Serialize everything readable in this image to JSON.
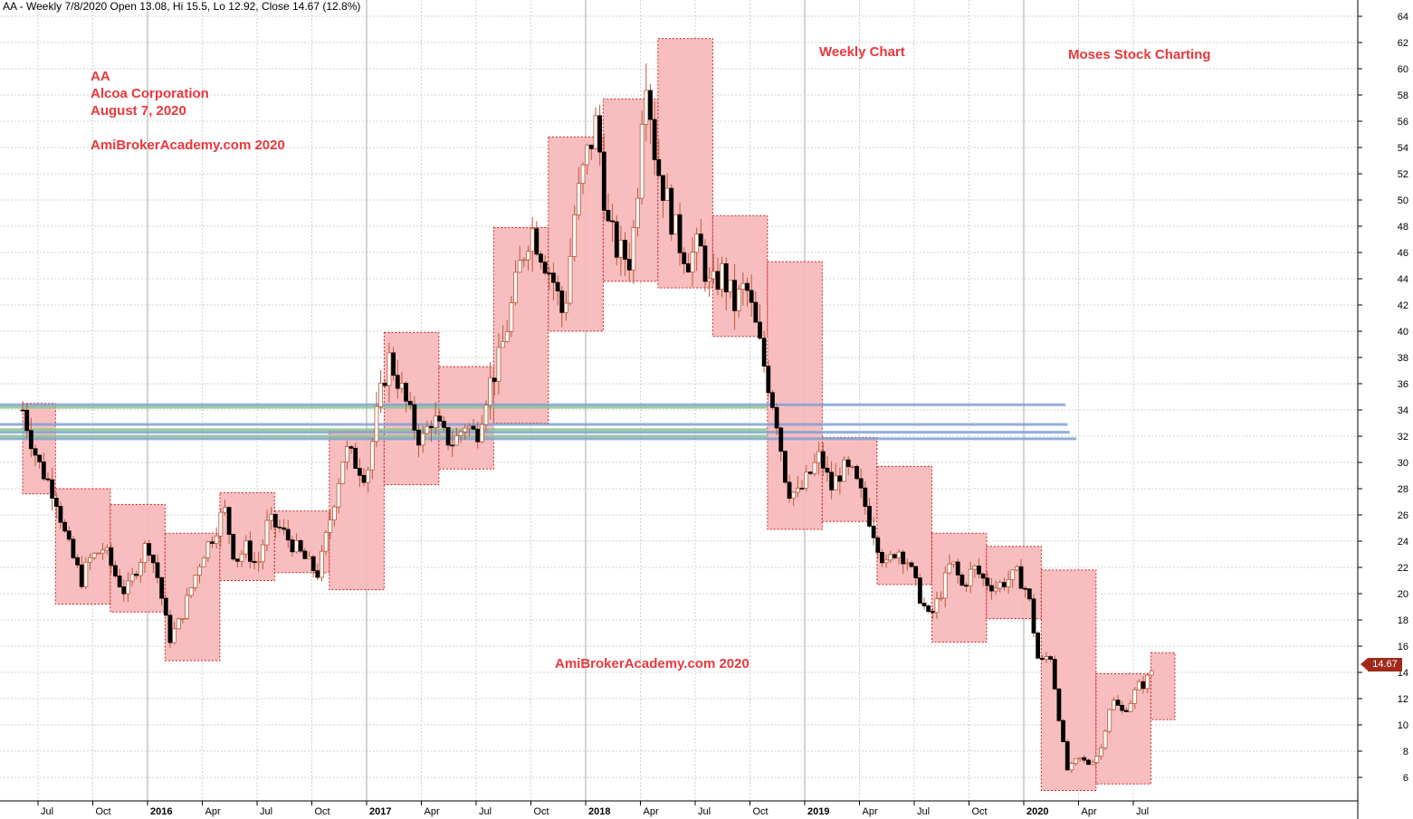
{
  "header": {
    "title": "AA - Weekly 7/8/2020 Open 13.08, Hi 15.5, Lo 12.92, Close 14.67 (12.8%)"
  },
  "annotations": {
    "ticker": "AA",
    "company": "Alcoa Corporation",
    "date": "August 7, 2020",
    "site_top": "AmiBrokerAcademy.com  2020",
    "weekly_chart": "Weekly Chart",
    "moses": "Moses Stock Charting",
    "site_bottom": "AmiBrokerAcademy.com  2020"
  },
  "last_price_label": "14.67",
  "colors": {
    "background": "#ffffff",
    "grid": "#d0d0d0",
    "box_fill": "#f7b7b8",
    "box_border": "#cc2222",
    "bull_candle": "#ffffff",
    "bear_candle": "#000000",
    "wick": "#b85a3c",
    "resistance_blue": "#7fa0d6",
    "resistance_green": "#8cc48c",
    "annotation_red": "#e8383d",
    "price_tag": "#a02a1a"
  },
  "chart_data": {
    "type": "candlestick",
    "title": "AA - Weekly 7/8/2020 Open 13.08, Hi 15.5, Lo 12.92, Close 14.67 (12.8%)",
    "x_start": "2015-06",
    "x_end": "2020-08",
    "ylim": [
      4.5,
      65.5
    ],
    "y_ticks": [
      6,
      8,
      10,
      12,
      14,
      16,
      18,
      20,
      22,
      24,
      26,
      28,
      30,
      32,
      34,
      36,
      38,
      40,
      42,
      44,
      46,
      48,
      50,
      52,
      54,
      56,
      58,
      60,
      62,
      64
    ],
    "x_ticks": [
      {
        "label": "Jul",
        "t": 2015.5,
        "bold": false
      },
      {
        "label": "Oct",
        "t": 2015.75,
        "bold": false
      },
      {
        "label": "2016",
        "t": 2016.0,
        "bold": true
      },
      {
        "label": "Apr",
        "t": 2016.25,
        "bold": false
      },
      {
        "label": "Jul",
        "t": 2016.5,
        "bold": false
      },
      {
        "label": "Oct",
        "t": 2016.75,
        "bold": false
      },
      {
        "label": "2017",
        "t": 2017.0,
        "bold": true
      },
      {
        "label": "Apr",
        "t": 2017.25,
        "bold": false
      },
      {
        "label": "Jul",
        "t": 2017.5,
        "bold": false
      },
      {
        "label": "Oct",
        "t": 2017.75,
        "bold": false
      },
      {
        "label": "2018",
        "t": 2018.0,
        "bold": true
      },
      {
        "label": "Apr",
        "t": 2018.25,
        "bold": false
      },
      {
        "label": "Jul",
        "t": 2018.5,
        "bold": false
      },
      {
        "label": "Oct",
        "t": 2018.75,
        "bold": false
      },
      {
        "label": "2019",
        "t": 2019.0,
        "bold": true
      },
      {
        "label": "Apr",
        "t": 2019.25,
        "bold": false
      },
      {
        "label": "Jul",
        "t": 2019.5,
        "bold": false
      },
      {
        "label": "Oct",
        "t": 2019.75,
        "bold": false
      },
      {
        "label": "2020",
        "t": 2020.0,
        "bold": true
      },
      {
        "label": "Apr",
        "t": 2020.25,
        "bold": false
      },
      {
        "label": "Jul",
        "t": 2020.5,
        "bold": false
      }
    ],
    "quarterly_boxes": [
      {
        "t0": 2015.43,
        "t1": 2015.58,
        "low": 27.6,
        "high": 34.5
      },
      {
        "t0": 2015.58,
        "t1": 2015.83,
        "low": 19.2,
        "high": 28.0
      },
      {
        "t0": 2015.83,
        "t1": 2016.08,
        "low": 18.6,
        "high": 26.8
      },
      {
        "t0": 2016.08,
        "t1": 2016.33,
        "low": 14.9,
        "high": 24.6
      },
      {
        "t0": 2016.33,
        "t1": 2016.58,
        "low": 21.0,
        "high": 27.7
      },
      {
        "t0": 2016.58,
        "t1": 2016.83,
        "low": 21.6,
        "high": 26.3
      },
      {
        "t0": 2016.83,
        "t1": 2017.08,
        "low": 20.3,
        "high": 32.4
      },
      {
        "t0": 2017.08,
        "t1": 2017.33,
        "low": 28.3,
        "high": 39.9
      },
      {
        "t0": 2017.33,
        "t1": 2017.58,
        "low": 29.5,
        "high": 37.3
      },
      {
        "t0": 2017.58,
        "t1": 2017.83,
        "low": 33.0,
        "high": 47.9
      },
      {
        "t0": 2017.83,
        "t1": 2018.08,
        "low": 40.0,
        "high": 54.8
      },
      {
        "t0": 2018.08,
        "t1": 2018.33,
        "low": 43.8,
        "high": 57.7
      },
      {
        "t0": 2018.33,
        "t1": 2018.58,
        "low": 43.3,
        "high": 62.3
      },
      {
        "t0": 2018.58,
        "t1": 2018.83,
        "low": 39.6,
        "high": 48.8
      },
      {
        "t0": 2018.83,
        "t1": 2019.08,
        "low": 24.9,
        "high": 45.3
      },
      {
        "t0": 2019.08,
        "t1": 2019.33,
        "low": 25.5,
        "high": 31.9
      },
      {
        "t0": 2019.33,
        "t1": 2019.58,
        "low": 20.7,
        "high": 29.7
      },
      {
        "t0": 2019.58,
        "t1": 2019.83,
        "low": 16.3,
        "high": 24.6
      },
      {
        "t0": 2019.83,
        "t1": 2020.08,
        "low": 18.1,
        "high": 23.6
      },
      {
        "t0": 2020.08,
        "t1": 2020.33,
        "low": 5.0,
        "high": 21.8
      },
      {
        "t0": 2020.33,
        "t1": 2020.58,
        "low": 5.5,
        "high": 13.9
      },
      {
        "t0": 2020.58,
        "t1": 2020.69,
        "low": 10.4,
        "high": 15.5
      }
    ],
    "horizontal_levels": [
      {
        "price": 34.4,
        "t_end": 2020.19,
        "color": "blue"
      },
      {
        "price": 32.9,
        "t_end": 2020.2,
        "color": "blue"
      },
      {
        "price": 32.3,
        "t_end": 2020.21,
        "color": "blue"
      },
      {
        "price": 31.8,
        "t_end": 2020.24,
        "color": "blue"
      },
      {
        "price": 34.2,
        "t_end": 2018.83,
        "color": "green"
      },
      {
        "price": 32.5,
        "t_end": 2018.83,
        "color": "green"
      },
      {
        "price": 32.0,
        "t_end": 2018.83,
        "color": "green"
      }
    ],
    "close_path": [
      [
        2015.43,
        34.0
      ],
      [
        2015.5,
        30.0
      ],
      [
        2015.58,
        27.5
      ],
      [
        2015.63,
        24.0
      ],
      [
        2015.7,
        21.0
      ],
      [
        2015.73,
        22.5
      ],
      [
        2015.8,
        23.5
      ],
      [
        2015.85,
        21.5
      ],
      [
        2015.9,
        20.0
      ],
      [
        2015.95,
        22.0
      ],
      [
        2016.0,
        24.0
      ],
      [
        2016.05,
        21.0
      ],
      [
        2016.1,
        16.5
      ],
      [
        2016.15,
        18.0
      ],
      [
        2016.2,
        20.5
      ],
      [
        2016.25,
        23.0
      ],
      [
        2016.3,
        24.5
      ],
      [
        2016.35,
        26.5
      ],
      [
        2016.4,
        22.5
      ],
      [
        2016.45,
        23.5
      ],
      [
        2016.5,
        22.0
      ],
      [
        2016.55,
        25.5
      ],
      [
        2016.6,
        25.0
      ],
      [
        2016.65,
        24.0
      ],
      [
        2016.7,
        23.0
      ],
      [
        2016.75,
        22.0
      ],
      [
        2016.78,
        21.5
      ],
      [
        2016.85,
        27.0
      ],
      [
        2016.9,
        31.0
      ],
      [
        2016.95,
        30.0
      ],
      [
        2017.0,
        29.0
      ],
      [
        2017.05,
        34.0
      ],
      [
        2017.1,
        38.0
      ],
      [
        2017.15,
        36.0
      ],
      [
        2017.2,
        33.5
      ],
      [
        2017.25,
        31.5
      ],
      [
        2017.3,
        33.5
      ],
      [
        2017.35,
        32.0
      ],
      [
        2017.4,
        31.5
      ],
      [
        2017.45,
        33.0
      ],
      [
        2017.5,
        32.0
      ],
      [
        2017.55,
        35.5
      ],
      [
        2017.6,
        37.5
      ],
      [
        2017.65,
        41.0
      ],
      [
        2017.7,
        45.0
      ],
      [
        2017.75,
        48.0
      ],
      [
        2017.8,
        46.0
      ],
      [
        2017.85,
        44.0
      ],
      [
        2017.9,
        41.0
      ],
      [
        2017.95,
        49.0
      ],
      [
        2018.0,
        53.0
      ],
      [
        2018.05,
        56.0
      ],
      [
        2018.1,
        48.0
      ],
      [
        2018.15,
        46.0
      ],
      [
        2018.2,
        45.5
      ],
      [
        2018.23,
        49.0
      ],
      [
        2018.27,
        61.0
      ],
      [
        2018.32,
        53.0
      ],
      [
        2018.37,
        50.0
      ],
      [
        2018.42,
        47.0
      ],
      [
        2018.47,
        45.5
      ],
      [
        2018.52,
        46.5
      ],
      [
        2018.57,
        43.0
      ],
      [
        2018.62,
        44.5
      ],
      [
        2018.68,
        42.0
      ],
      [
        2018.73,
        43.5
      ],
      [
        2018.78,
        40.0
      ],
      [
        2018.82,
        37.0
      ],
      [
        2018.87,
        33.5
      ],
      [
        2018.92,
        28.0
      ],
      [
        2018.97,
        27.5
      ],
      [
        2019.02,
        29.0
      ],
      [
        2019.07,
        30.5
      ],
      [
        2019.12,
        28.0
      ],
      [
        2019.17,
        29.5
      ],
      [
        2019.22,
        29.0
      ],
      [
        2019.27,
        27.0
      ],
      [
        2019.32,
        24.5
      ],
      [
        2019.37,
        22.0
      ],
      [
        2019.42,
        23.5
      ],
      [
        2019.47,
        22.5
      ],
      [
        2019.52,
        20.0
      ],
      [
        2019.57,
        18.0
      ],
      [
        2019.62,
        20.0
      ],
      [
        2019.67,
        22.5
      ],
      [
        2019.72,
        20.5
      ],
      [
        2019.77,
        22.0
      ],
      [
        2019.82,
        21.0
      ],
      [
        2019.87,
        20.5
      ],
      [
        2019.92,
        21.0
      ],
      [
        2019.97,
        21.5
      ],
      [
        2020.02,
        20.0
      ],
      [
        2020.07,
        14.5
      ],
      [
        2020.12,
        15.5
      ],
      [
        2020.17,
        9.5
      ],
      [
        2020.2,
        6.5
      ],
      [
        2020.25,
        7.5
      ],
      [
        2020.3,
        7.0
      ],
      [
        2020.35,
        8.0
      ],
      [
        2020.4,
        12.0
      ],
      [
        2020.45,
        11.0
      ],
      [
        2020.48,
        11.5
      ],
      [
        2020.52,
        13.0
      ],
      [
        2020.55,
        13.08
      ],
      [
        2020.6,
        14.67
      ]
    ]
  }
}
